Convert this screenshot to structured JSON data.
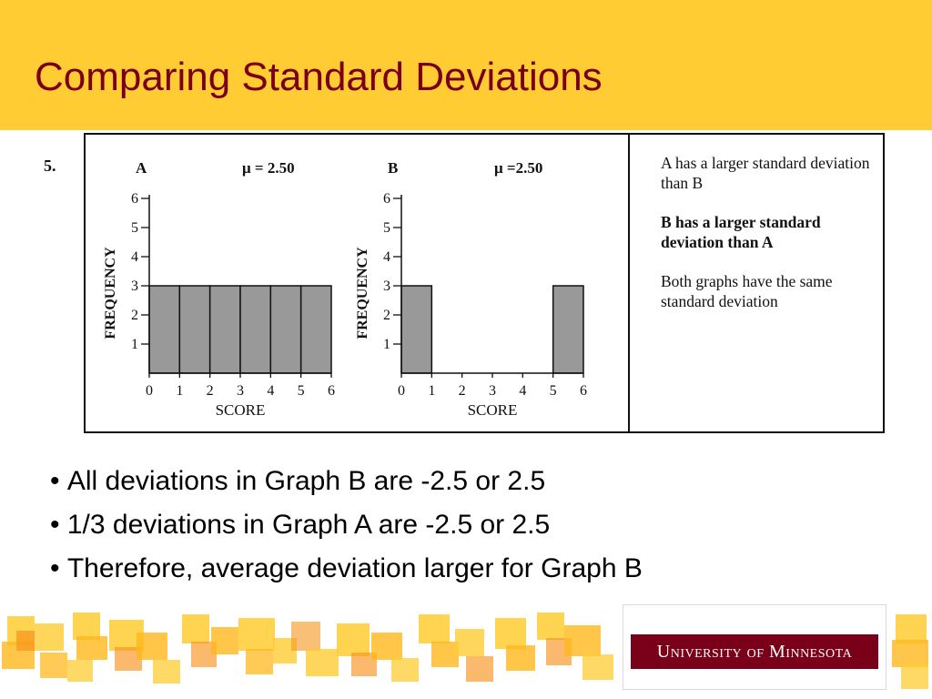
{
  "slide": {
    "title": "Comparing Standard Deviations",
    "question_number": "5.",
    "choices": [
      {
        "text": "A has a larger standard deviation than B",
        "bold": false
      },
      {
        "text": "B has a larger standard deviation than A",
        "bold": true
      },
      {
        "text": "Both graphs have the same standard deviation",
        "bold": false
      }
    ],
    "bullets": [
      "All deviations in Graph B are -2.5 or 2.5",
      "1/3 deviations in Graph A are -2.5 or 2.5",
      "Therefore, average deviation larger for Graph B"
    ],
    "logo_text": "University of Minnesota"
  },
  "colors": {
    "header": "#ffcc33",
    "title": "#7a0019",
    "bar_fill": "#999999",
    "logo_bg": "#7a0019",
    "deco_light": "#ffcc33",
    "deco_mid": "#ffb81c",
    "deco_dark": "#f7941d"
  },
  "chart_data": [
    {
      "type": "bar",
      "title": "A",
      "annotation": "μ = 2.50",
      "xlabel": "SCORE",
      "ylabel": "FREQUENCY",
      "bin_edges": [
        0,
        1,
        2,
        3,
        4,
        5,
        6
      ],
      "x_ticks": [
        "0",
        "1",
        "2",
        "3",
        "4",
        "5",
        "6"
      ],
      "y_ticks": [
        "1",
        "2",
        "3",
        "4",
        "5",
        "6"
      ],
      "values": [
        3,
        3,
        3,
        3,
        3,
        3
      ],
      "xlim": [
        0,
        6
      ],
      "ylim": [
        0,
        6
      ],
      "grid": false
    },
    {
      "type": "bar",
      "title": "B",
      "annotation": "μ =2.50",
      "xlabel": "SCORE",
      "ylabel": "FREQUENCY",
      "bin_edges": [
        0,
        1,
        2,
        3,
        4,
        5,
        6
      ],
      "x_ticks": [
        "0",
        "1",
        "2",
        "3",
        "4",
        "5",
        "6"
      ],
      "y_ticks": [
        "1",
        "2",
        "3",
        "4",
        "5",
        "6"
      ],
      "values": [
        3,
        0,
        0,
        0,
        0,
        3
      ],
      "xlim": [
        0,
        6
      ],
      "ylim": [
        0,
        6
      ],
      "grid": false
    }
  ]
}
